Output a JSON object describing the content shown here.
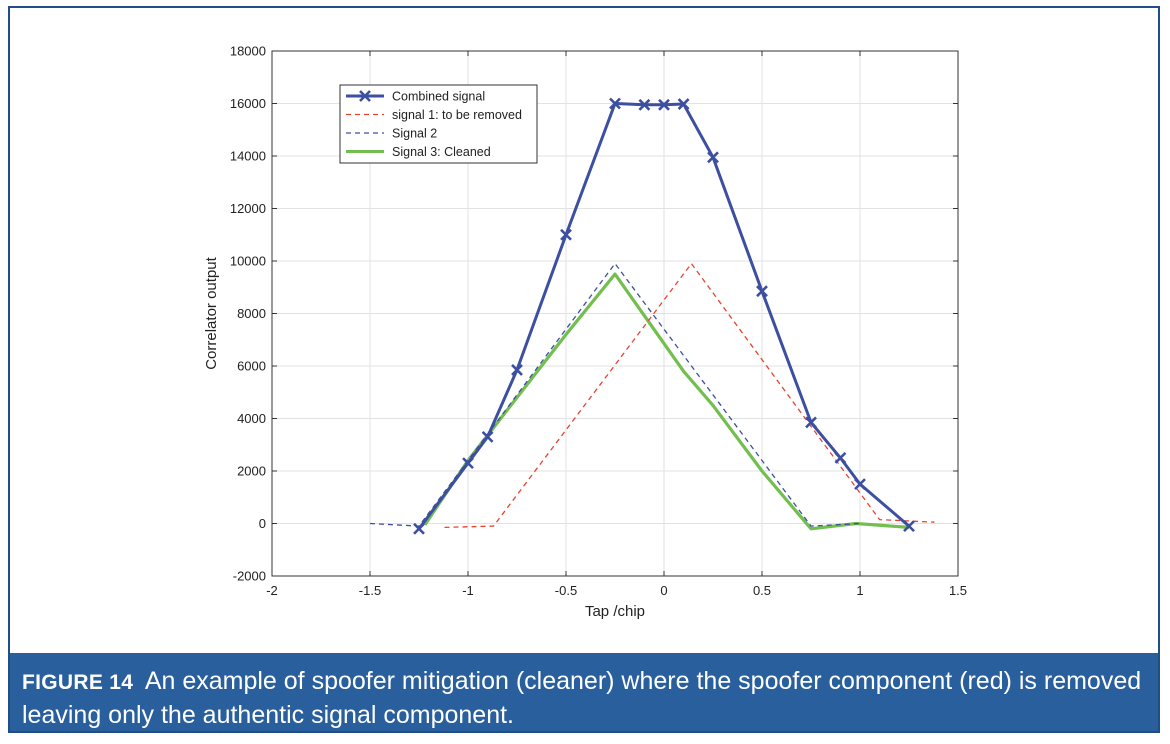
{
  "caption": {
    "label": "FIGURE 14",
    "text": "An example of spoofer mitigation (cleaner) where the spoofer component (red) is removed leaving only the authentic signal component."
  },
  "chart_data": {
    "type": "line",
    "title": "",
    "xlabel": "Tap /chip",
    "ylabel": "Correlator output",
    "xlim": [
      -2,
      1.5
    ],
    "ylim": [
      -2000,
      18000
    ],
    "grid": true,
    "legend_position": "top-left",
    "x_ticks": [
      -2,
      -1.5,
      -1,
      -0.5,
      0,
      0.5,
      1,
      1.5
    ],
    "x_tick_labels": [
      "-2",
      "-1.5",
      "-1",
      "-0.5",
      "0",
      "0.5",
      "1",
      "1.5"
    ],
    "y_ticks": [
      -2000,
      0,
      2000,
      4000,
      6000,
      8000,
      10000,
      12000,
      14000,
      16000,
      18000
    ],
    "y_tick_labels": [
      "-2000",
      "0",
      "2000",
      "4000",
      "6000",
      "8000",
      "10000",
      "12000",
      "14000",
      "16000",
      "18000"
    ],
    "series": [
      {
        "name": "Combined signal",
        "color": "#3c4fa0",
        "style": "solid-x",
        "x": [
          -1.25,
          -1.0,
          -0.9,
          -0.75,
          -0.5,
          -0.25,
          -0.1,
          0.0,
          0.1,
          0.25,
          0.5,
          0.75,
          0.9,
          1.0,
          1.25
        ],
        "y": [
          -200,
          2300,
          3300,
          5850,
          11000,
          16000,
          15950,
          15950,
          15980,
          13950,
          8850,
          3850,
          2500,
          1500,
          -100
        ]
      },
      {
        "name": "signal 1: to be removed",
        "color": "#e8432e",
        "style": "dashed",
        "x": [
          -1.12,
          -0.87,
          0.14,
          1.1,
          1.38
        ],
        "y": [
          -150,
          -100,
          9900,
          150,
          50
        ]
      },
      {
        "name": "Signal 2",
        "color": "#3c4fa0",
        "style": "dashed",
        "x": [
          -1.5,
          -1.25,
          -0.25,
          0.75,
          1.0
        ],
        "y": [
          0,
          -100,
          9900,
          -100,
          0
        ]
      },
      {
        "name": "Signal 3: Cleaned",
        "color": "#72be4e",
        "style": "solid",
        "x": [
          -1.22,
          -1.0,
          -0.75,
          -0.5,
          -0.25,
          0.1,
          0.25,
          0.5,
          0.75,
          0.98,
          1.25
        ],
        "y": [
          -50,
          2400,
          4800,
          7200,
          9500,
          5800,
          4500,
          2000,
          -200,
          0,
          -150
        ]
      }
    ]
  }
}
